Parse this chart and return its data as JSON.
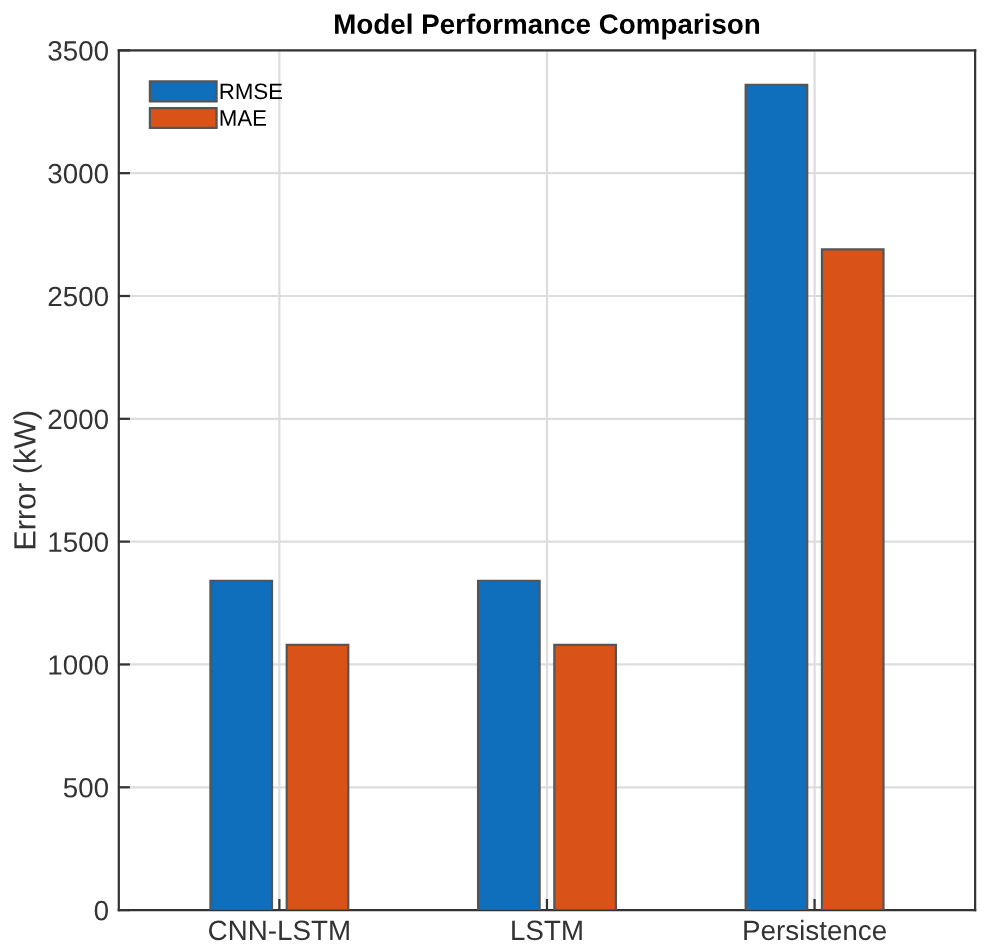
{
  "chart_data": {
    "type": "bar",
    "title": "Model Performance Comparison",
    "ylabel": "Error (kW)",
    "categories": [
      "CNN-LSTM",
      "LSTM",
      "Persistence"
    ],
    "series": [
      {
        "name": "RMSE",
        "color": "#0f6fbd",
        "values": [
          1340,
          1340,
          3360
        ]
      },
      {
        "name": "MAE",
        "color": "#d95319",
        "values": [
          1080,
          1080,
          2690
        ]
      }
    ],
    "ylim": [
      0,
      3500
    ],
    "yticks": [
      0,
      500,
      1000,
      1500,
      2000,
      2500,
      3000,
      3500
    ],
    "grid": true,
    "legend": "top left"
  }
}
